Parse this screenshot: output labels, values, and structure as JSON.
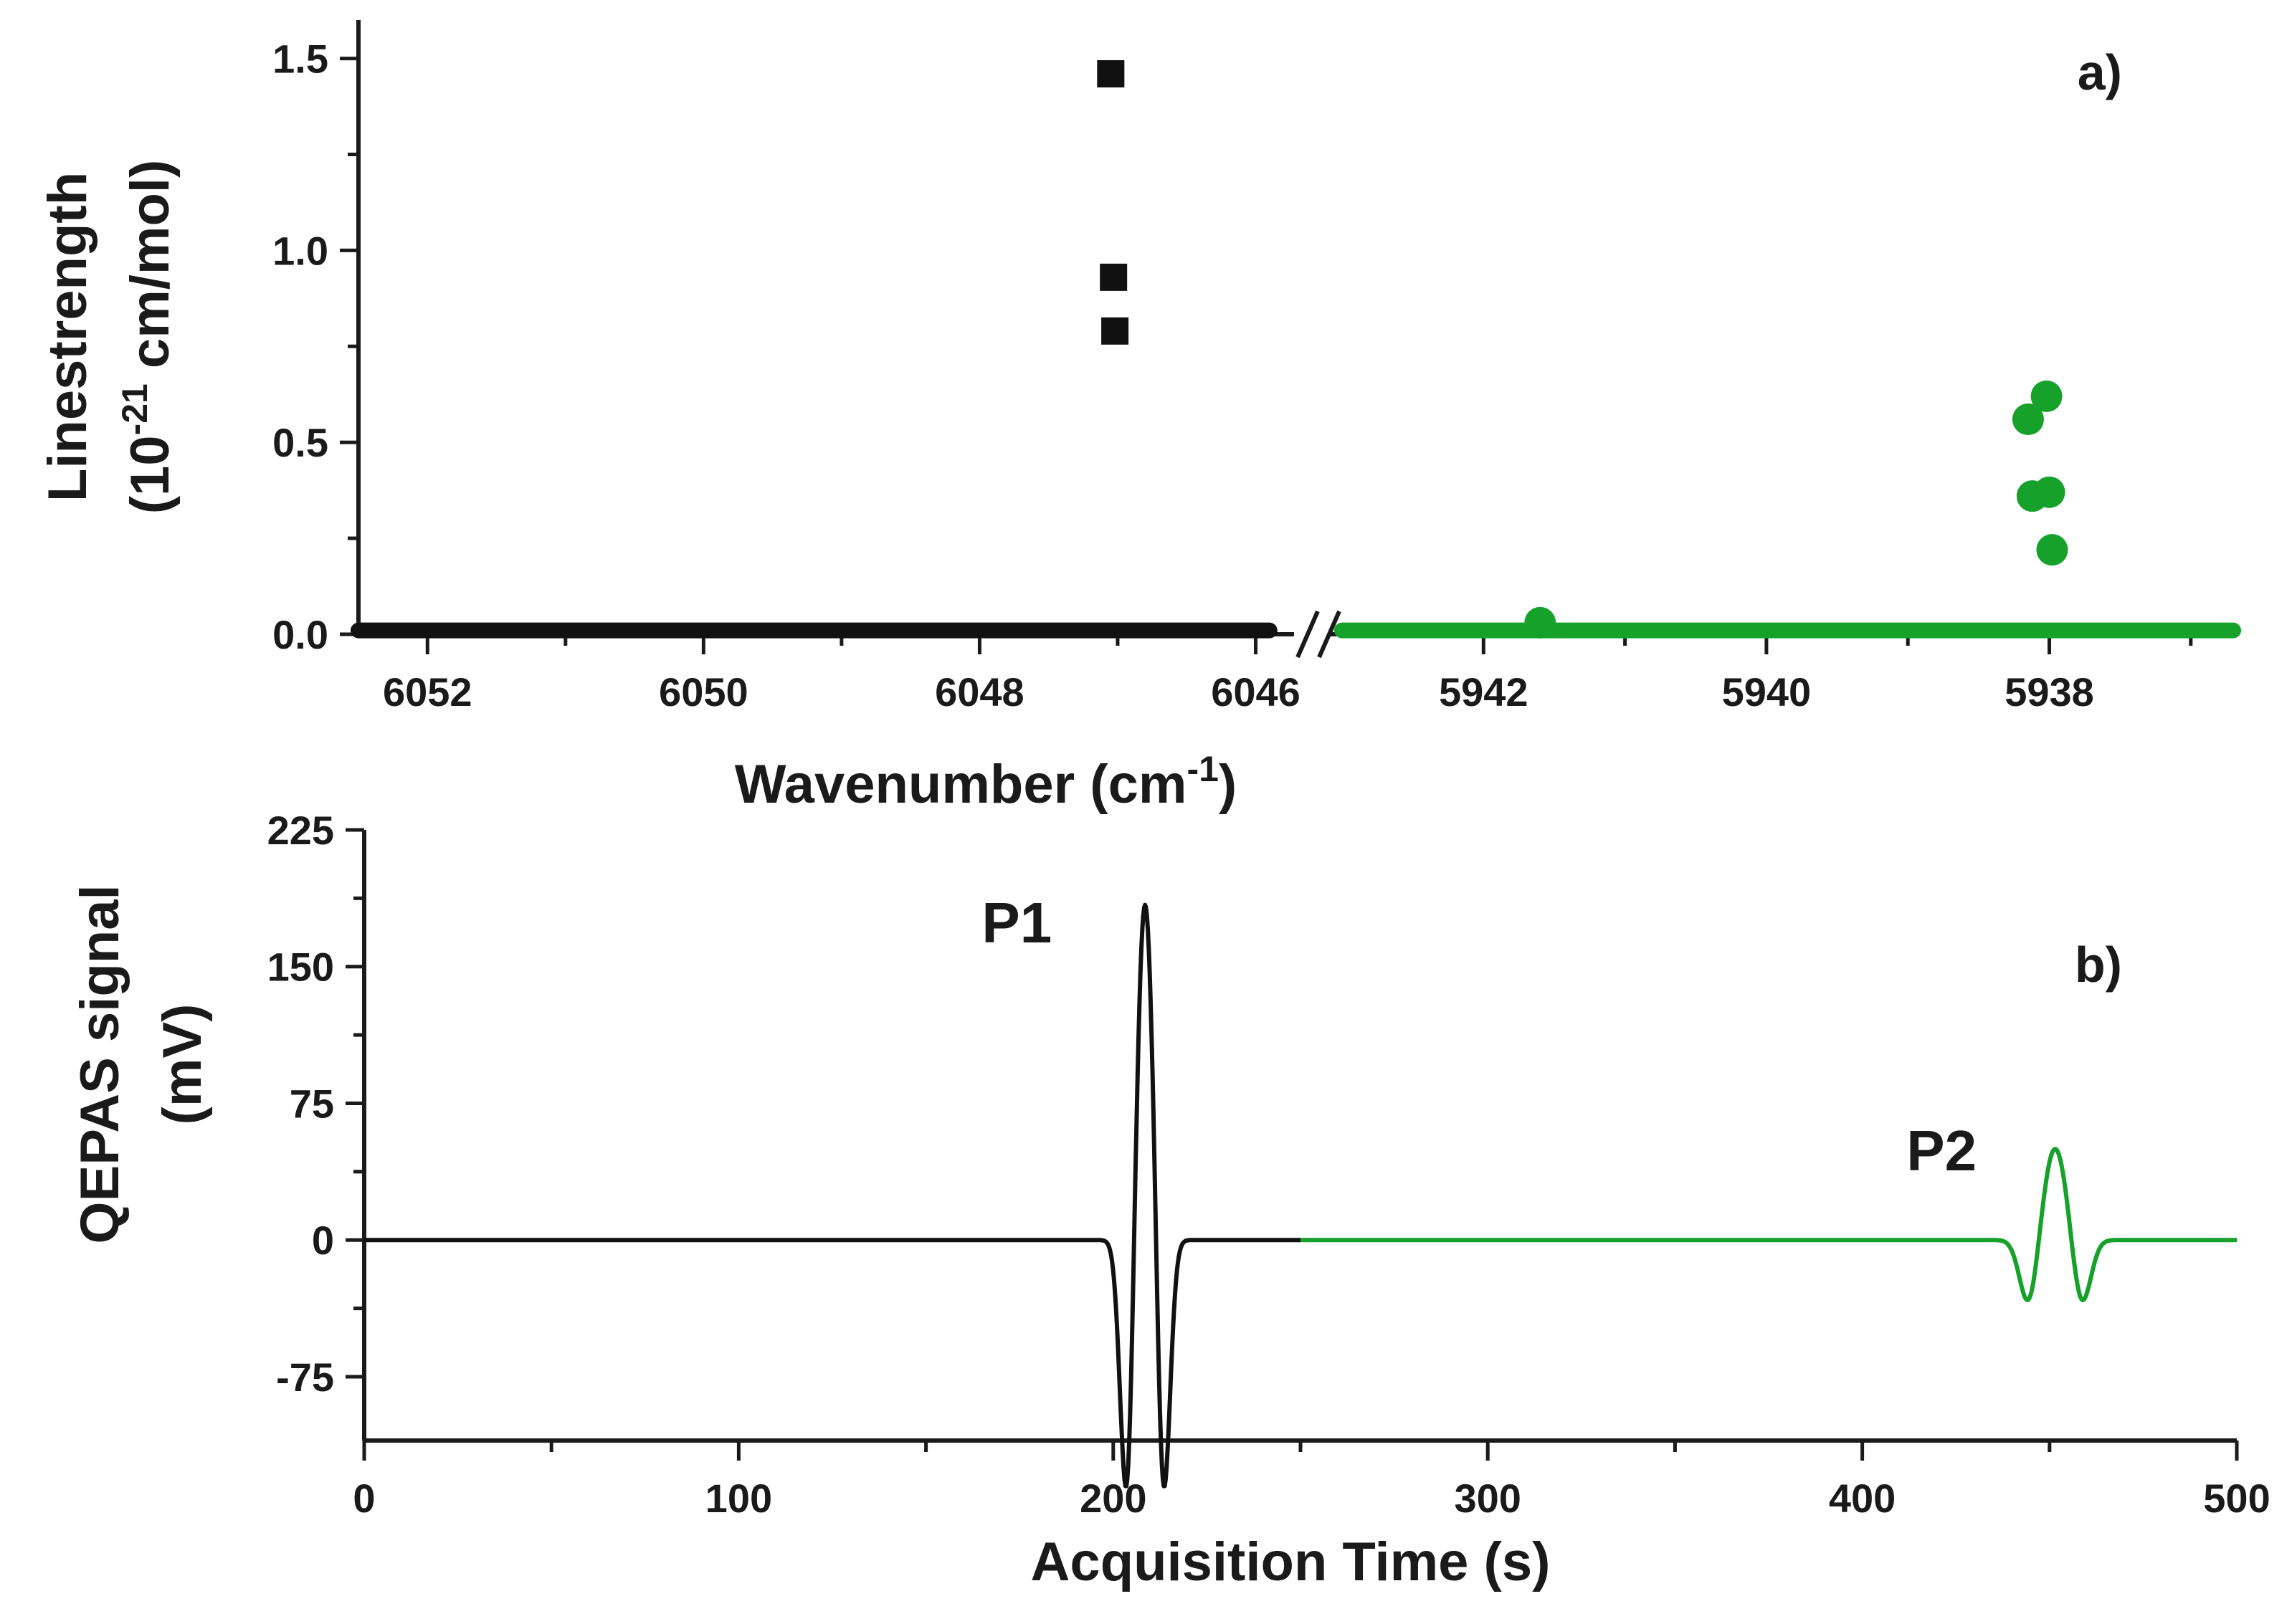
{
  "colors": {
    "black_series": "#111111",
    "green_series": "#15a12a",
    "axis": "#1a1a1a"
  },
  "chart_data": [
    {
      "type": "scatter",
      "panel_label": "a)",
      "title": "",
      "xlabel": "Wavenumber (cm",
      "xlabel_superscript": "-1",
      "xlabel_suffix": ")",
      "ylabel_line1": "Linestrength",
      "ylabel_line2_prefix": "(10",
      "ylabel_line2_superscript": "-21",
      "ylabel_line2_suffix": " cm/mol)",
      "ylim": [
        0,
        1.6
      ],
      "yticks": [
        {
          "value": 0.0,
          "label": "0.0"
        },
        {
          "value": 0.5,
          "label": "0.5"
        },
        {
          "value": 1.0,
          "label": "1.0"
        },
        {
          "value": 1.5,
          "label": "1.5"
        }
      ],
      "broken_x_axis": true,
      "segments": [
        {
          "xlim": [
            6052.5,
            6045.8
          ],
          "xticks": [
            {
              "value": 6052,
              "label": "6052"
            },
            {
              "value": 6050,
              "label": "6050"
            },
            {
              "value": 6048,
              "label": "6048"
            },
            {
              "value": 6046,
              "label": "6046"
            }
          ]
        },
        {
          "xlim": [
            5943.0,
            5936.7
          ],
          "xticks": [
            {
              "value": 5942,
              "label": "5942"
            },
            {
              "value": 5940,
              "label": "5940"
            },
            {
              "value": 5938,
              "label": "5938"
            }
          ]
        }
      ],
      "series": [
        {
          "name": "black squares",
          "marker": "square",
          "segment": 0,
          "points": [
            {
              "x": 6047.05,
              "y": 1.46
            },
            {
              "x": 6047.03,
              "y": 0.93
            },
            {
              "x": 6047.02,
              "y": 0.79
            }
          ],
          "baseline": {
            "y": 0.01,
            "from": 6052.5,
            "to": 6045.9
          }
        },
        {
          "name": "green circles",
          "marker": "circle",
          "segment": 1,
          "points": [
            {
              "x": 5938.15,
              "y": 0.56
            },
            {
              "x": 5938.02,
              "y": 0.62
            },
            {
              "x": 5938.12,
              "y": 0.36
            },
            {
              "x": 5938.0,
              "y": 0.37
            },
            {
              "x": 5937.98,
              "y": 0.22
            },
            {
              "x": 5941.6,
              "y": 0.03
            }
          ],
          "baseline": {
            "y": 0.01,
            "from": 5943.0,
            "to": 5936.7
          }
        }
      ]
    },
    {
      "type": "line",
      "panel_label": "b)",
      "title": "",
      "xlabel": "Acquisition Time (s)",
      "ylabel_line1": "QEPAS signal",
      "ylabel_line2": "(mV)",
      "xlim": [
        0,
        500
      ],
      "ylim": [
        -110,
        225
      ],
      "xticks": [
        {
          "value": 0,
          "label": "0"
        },
        {
          "value": 100,
          "label": "100"
        },
        {
          "value": 200,
          "label": "200"
        },
        {
          "value": 300,
          "label": "300"
        },
        {
          "value": 400,
          "label": "400"
        },
        {
          "value": 500,
          "label": "500"
        }
      ],
      "yticks": [
        {
          "value": -75,
          "label": "-75"
        },
        {
          "value": 0,
          "label": "0"
        },
        {
          "value": 75,
          "label": "75"
        },
        {
          "value": 150,
          "label": "150"
        },
        {
          "value": 225,
          "label": "225"
        }
      ],
      "series": [
        {
          "name": "black trace",
          "color_key": "black_series",
          "x_range": [
            0,
            250
          ],
          "peaks": [
            {
              "center": 208.5,
              "amplitude": 195,
              "width": 2.6
            },
            {
              "center": 203.8,
              "amplitude": -168,
              "width": 1.8
            },
            {
              "center": 213.2,
              "amplitude": -168,
              "width": 1.8
            }
          ]
        },
        {
          "name": "green trace",
          "color_key": "green_series",
          "x_range": [
            250,
            500
          ],
          "peaks": [
            {
              "center": 451.5,
              "amplitude": 51,
              "width": 3.2
            },
            {
              "center": 444.5,
              "amplitude": -37,
              "width": 2.4
            },
            {
              "center": 458.5,
              "amplitude": -37,
              "width": 2.4
            }
          ]
        }
      ],
      "annotations": [
        {
          "text": "P1",
          "x": 180,
          "y": 175
        },
        {
          "text": "P2",
          "x": 425,
          "y": 50
        }
      ]
    }
  ]
}
